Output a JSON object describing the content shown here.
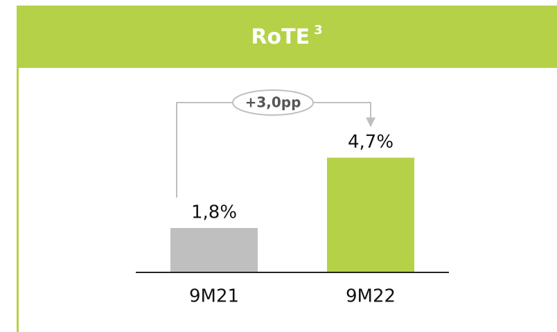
{
  "chart_data": {
    "type": "bar",
    "title": "RoTE",
    "title_note": "3",
    "categories": [
      "9M21",
      "9M22"
    ],
    "values": [
      1.8,
      4.7
    ],
    "value_labels": [
      "1,8%",
      "4,7%"
    ],
    "colors": [
      "#bfbfbf",
      "#b5d147"
    ],
    "header_color": "#b5d147",
    "annotation": "+3,0pp"
  }
}
